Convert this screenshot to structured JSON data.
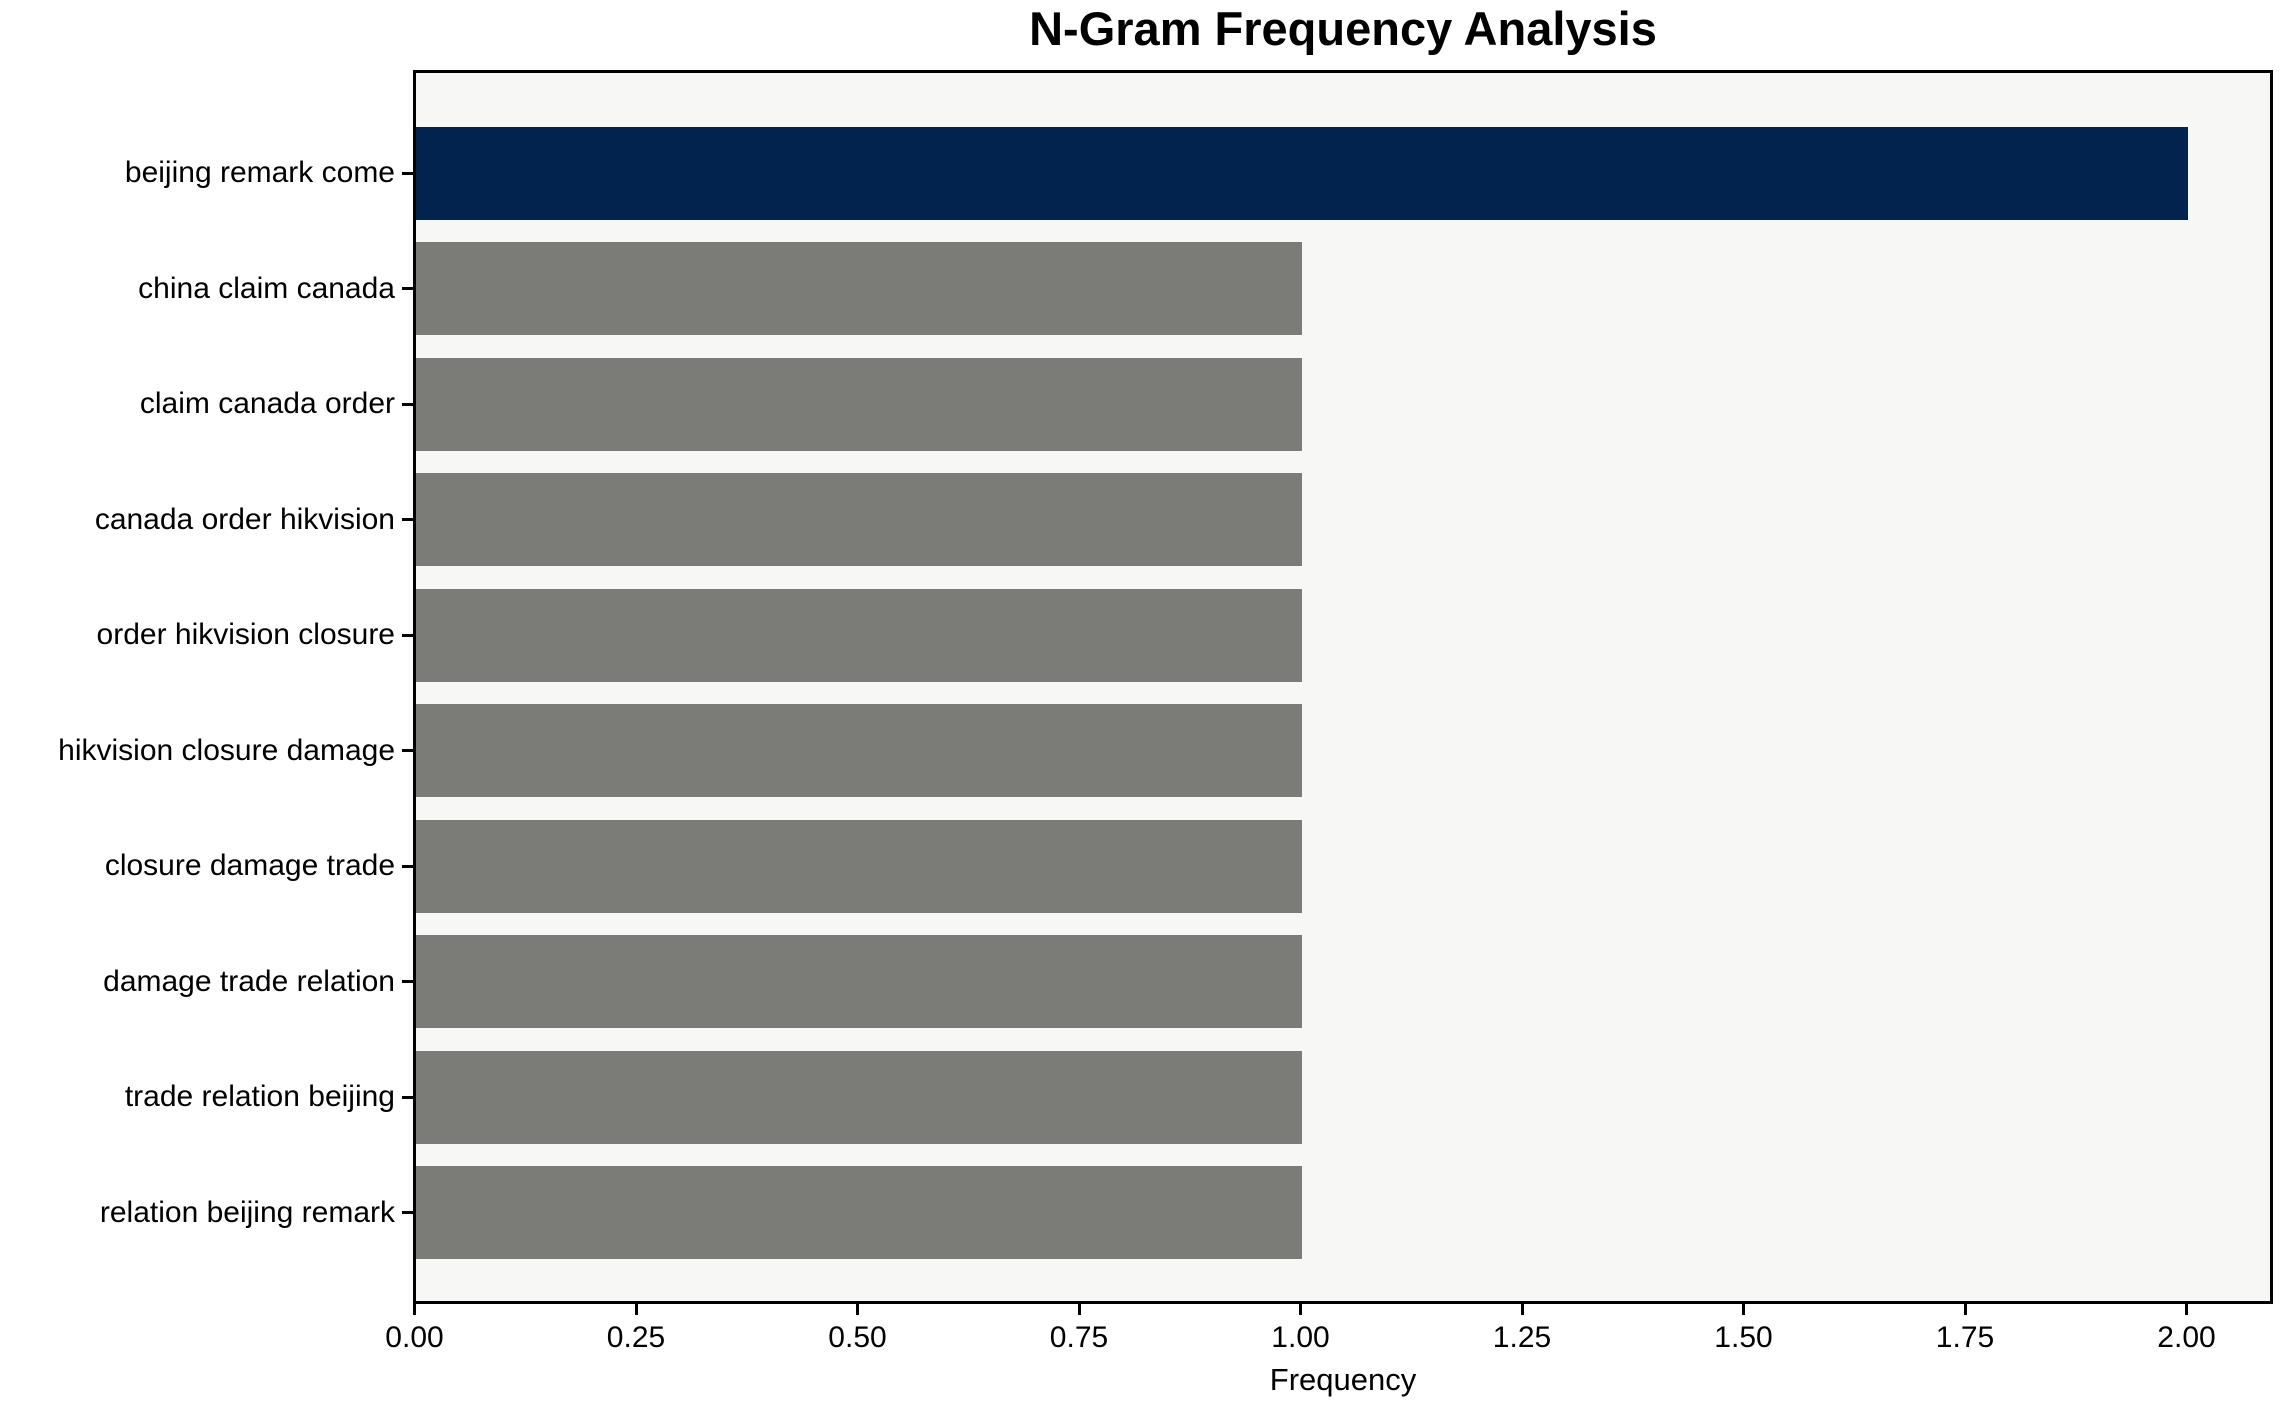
{
  "chart_data": {
    "type": "bar",
    "orientation": "horizontal",
    "title": "N-Gram Frequency Analysis",
    "xlabel": "Frequency",
    "ylabel": "",
    "categories": [
      "beijing remark come",
      "china claim canada",
      "claim canada order",
      "canada order hikvision",
      "order hikvision closure",
      "hikvision closure damage",
      "closure damage trade",
      "damage trade relation",
      "trade relation beijing",
      "relation beijing remark"
    ],
    "values": [
      2,
      1,
      1,
      1,
      1,
      1,
      1,
      1,
      1,
      1
    ],
    "highlight_index": 0,
    "x_ticks": [
      {
        "value": 0.0,
        "label": "0.00"
      },
      {
        "value": 0.25,
        "label": "0.25"
      },
      {
        "value": 0.5,
        "label": "0.50"
      },
      {
        "value": 0.75,
        "label": "0.75"
      },
      {
        "value": 1.0,
        "label": "1.00"
      },
      {
        "value": 1.25,
        "label": "1.25"
      },
      {
        "value": 1.5,
        "label": "1.50"
      },
      {
        "value": 1.75,
        "label": "1.75"
      },
      {
        "value": 2.0,
        "label": "2.00"
      }
    ],
    "xlim": [
      0,
      2.1
    ],
    "grid": false,
    "legend": null,
    "colors": {
      "bar_highlight": "#02234e",
      "bar_default": "#7b7b78",
      "plot_background": "#f7f7f6",
      "figure_background": "#ffffff",
      "axis": "#000000",
      "text": "#000000"
    }
  }
}
